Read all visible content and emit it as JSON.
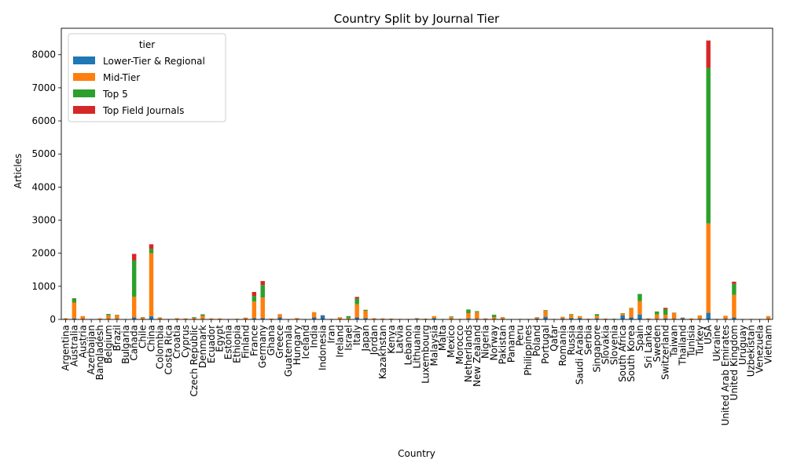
{
  "chart_data": {
    "type": "bar",
    "stacked": true,
    "title": "Country Split by Journal Tier",
    "xlabel": "Country",
    "ylabel": "Articles",
    "ylim": [
      0,
      8800
    ],
    "yticks": [
      0,
      1000,
      2000,
      3000,
      4000,
      5000,
      6000,
      7000,
      8000
    ],
    "legend": {
      "title": "tier",
      "placement": "top-left"
    },
    "categories": [
      "Argentina",
      "Australia",
      "Austria",
      "Azerbaijan",
      "Bangladesh",
      "Belgium",
      "Brazil",
      "Bulgaria",
      "Canada",
      "Chile",
      "China",
      "Colombia",
      "Costa Rica",
      "Croatia",
      "Cyprus",
      "Czech Republic",
      "Denmark",
      "Ecuador",
      "Egypt",
      "Estonia",
      "Ethiopia",
      "Finland",
      "France",
      "Germany",
      "Ghana",
      "Greece",
      "Guatemala",
      "Hungary",
      "Iceland",
      "India",
      "Indonesia",
      "Iran",
      "Ireland",
      "Israel",
      "Italy",
      "Japan",
      "Jordan",
      "Kazakhstan",
      "Kenya",
      "Latvia",
      "Lebanon",
      "Lithuania",
      "Luxembourg",
      "Malaysia",
      "Malta",
      "Mexico",
      "Morocco",
      "Netherlands",
      "New Zealand",
      "Nigeria",
      "Norway",
      "Pakistan",
      "Panama",
      "Peru",
      "Philippines",
      "Poland",
      "Portugal",
      "Qatar",
      "Romania",
      "Russia",
      "Saudi Arabia",
      "Serbia",
      "Singapore",
      "Slovakia",
      "Slovenia",
      "South Africa",
      "South Korea",
      "Spain",
      "Sri Lanka",
      "Sweden",
      "Switzerland",
      "Taiwan",
      "Thailand",
      "Tunisia",
      "Turkey",
      "USA",
      "Ukraine",
      "United Arab Emirates",
      "United Kingdom",
      "Uruguay",
      "Uzbekistan",
      "Venezuela",
      "Vietnam"
    ],
    "series": [
      {
        "name": "Lower-Tier & Regional",
        "color": "#1f77b4",
        "values": [
          5,
          30,
          10,
          2,
          10,
          15,
          20,
          2,
          60,
          15,
          100,
          10,
          3,
          5,
          5,
          10,
          15,
          10,
          5,
          2,
          10,
          5,
          40,
          40,
          5,
          60,
          2,
          10,
          2,
          60,
          120,
          5,
          5,
          10,
          60,
          40,
          5,
          10,
          5,
          5,
          5,
          20,
          5,
          40,
          3,
          10,
          5,
          30,
          20,
          10,
          10,
          20,
          3,
          5,
          5,
          30,
          80,
          5,
          30,
          40,
          40,
          10,
          30,
          5,
          3,
          120,
          60,
          150,
          10,
          20,
          30,
          20,
          40,
          10,
          20,
          200,
          5,
          20,
          60,
          2,
          5,
          3,
          20
        ]
      },
      {
        "name": "Mid-Tier",
        "color": "#ff7f0e",
        "values": [
          30,
          480,
          90,
          5,
          20,
          110,
          110,
          5,
          620,
          50,
          1900,
          40,
          10,
          30,
          25,
          40,
          90,
          20,
          25,
          10,
          10,
          50,
          500,
          620,
          20,
          100,
          5,
          30,
          5,
          160,
          10,
          10,
          60,
          30,
          400,
          220,
          30,
          20,
          20,
          10,
          10,
          20,
          20,
          60,
          5,
          60,
          10,
          160,
          200,
          20,
          60,
          50,
          5,
          10,
          10,
          40,
          180,
          10,
          50,
          100,
          60,
          10,
          80,
          20,
          10,
          60,
          280,
          400,
          20,
          130,
          110,
          180,
          20,
          20,
          100,
          2700,
          10,
          90,
          680,
          10,
          10,
          10,
          80
        ]
      },
      {
        "name": "Top 5",
        "color": "#2ca02c",
        "values": [
          0,
          120,
          0,
          0,
          0,
          40,
          10,
          0,
          1100,
          5,
          130,
          10,
          0,
          0,
          0,
          20,
          40,
          0,
          0,
          0,
          0,
          0,
          170,
          380,
          0,
          0,
          0,
          0,
          0,
          0,
          0,
          0,
          0,
          60,
          170,
          30,
          0,
          0,
          0,
          0,
          0,
          0,
          0,
          0,
          0,
          20,
          0,
          110,
          30,
          0,
          70,
          0,
          0,
          0,
          0,
          0,
          20,
          0,
          0,
          20,
          0,
          0,
          50,
          0,
          5,
          10,
          10,
          220,
          0,
          90,
          170,
          5,
          0,
          0,
          0,
          4700,
          0,
          0,
          330,
          0,
          0,
          0,
          0
        ]
      },
      {
        "name": "Top Field Journals",
        "color": "#d62728",
        "values": [
          0,
          10,
          0,
          0,
          0,
          0,
          0,
          0,
          200,
          0,
          140,
          0,
          0,
          0,
          0,
          0,
          10,
          0,
          0,
          0,
          0,
          0,
          120,
          120,
          0,
          0,
          0,
          0,
          0,
          0,
          0,
          0,
          0,
          0,
          50,
          0,
          0,
          0,
          0,
          0,
          0,
          0,
          0,
          0,
          0,
          0,
          0,
          0,
          0,
          0,
          0,
          0,
          0,
          0,
          0,
          0,
          0,
          0,
          0,
          0,
          0,
          0,
          0,
          0,
          0,
          0,
          0,
          0,
          0,
          0,
          40,
          0,
          0,
          0,
          0,
          830,
          0,
          0,
          70,
          0,
          0,
          0,
          0
        ]
      }
    ]
  }
}
